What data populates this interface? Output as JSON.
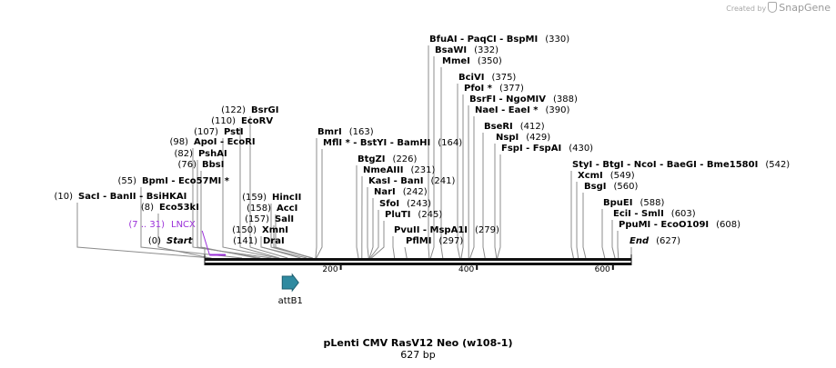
{
  "brand": {
    "prefix": "Created by",
    "name": "SnapGene"
  },
  "plasmid": {
    "name": "pLenti CMV RasV12 Neo (w108-1)",
    "length_label": "627 bp",
    "length": 627
  },
  "ruler": {
    "ticks": [
      {
        "pos": 200,
        "label": "200"
      },
      {
        "pos": 400,
        "label": "400"
      },
      {
        "pos": 600,
        "label": "600"
      }
    ]
  },
  "features": [
    {
      "name": "LNCX",
      "range": "(7 .. 31)",
      "start": 7,
      "end": 31,
      "color": "#9b30d9"
    },
    {
      "name": "attB1",
      "start": 114,
      "end": 138,
      "color": "#2f8aa0"
    }
  ],
  "sites": [
    {
      "text": "Start",
      "pos_label": "(0)",
      "bp": 0,
      "italic": true
    },
    {
      "text": "Eco53kI",
      "pos_label": "(8)",
      "bp": 8
    },
    {
      "text": "SacI  - BanII  - BsiHKAI",
      "pos_label": "(10)",
      "bp": 10
    },
    {
      "text": "BpmI  - Eco57MI *",
      "pos_label": "(55)",
      "bp": 55
    },
    {
      "text": "BbsI",
      "pos_label": "(76)",
      "bp": 76
    },
    {
      "text": "PshAI",
      "pos_label": "(82)",
      "bp": 82
    },
    {
      "text": "ApoI  - EcoRI",
      "pos_label": "(98)",
      "bp": 98
    },
    {
      "text": "PstI",
      "pos_label": "(107)",
      "bp": 107
    },
    {
      "text": "EcoRV",
      "pos_label": "(110)",
      "bp": 110
    },
    {
      "text": "BsrGI",
      "pos_label": "(122)",
      "bp": 122
    },
    {
      "text": "DraI",
      "pos_label": "(141)",
      "bp": 141
    },
    {
      "text": "XmnI",
      "pos_label": "(150)",
      "bp": 150
    },
    {
      "text": "SalI",
      "pos_label": "(157)",
      "bp": 157
    },
    {
      "text": "AccI",
      "pos_label": "(158)",
      "bp": 158
    },
    {
      "text": "HincII",
      "pos_label": "(159)",
      "bp": 159
    },
    {
      "text": "BmrI",
      "pos_label": "(163)",
      "bp": 163
    },
    {
      "text": "MflI * - BstYI  - BamHI",
      "pos_label": "(164)",
      "bp": 164
    },
    {
      "text": "BtgZI",
      "pos_label": "(226)",
      "bp": 226
    },
    {
      "text": "NmeAIII",
      "pos_label": "(231)",
      "bp": 231
    },
    {
      "text": "KasI  - BanI",
      "pos_label": "(241)",
      "bp": 241
    },
    {
      "text": "NarI",
      "pos_label": "(242)",
      "bp": 242
    },
    {
      "text": "SfoI",
      "pos_label": "(243)",
      "bp": 243
    },
    {
      "text": "PluTI",
      "pos_label": "(245)",
      "bp": 245
    },
    {
      "text": "PflMI",
      "pos_label": "(297)",
      "bp": 297
    },
    {
      "text": "PvuII  - MspA1I",
      "pos_label": "(279)",
      "bp": 279
    },
    {
      "text": "BfuAI  - PaqCI  - BspMI",
      "pos_label": "(330)",
      "bp": 330
    },
    {
      "text": "BsaWI",
      "pos_label": "(332)",
      "bp": 332
    },
    {
      "text": "MmeI",
      "pos_label": "(350)",
      "bp": 350
    },
    {
      "text": "BciVI",
      "pos_label": "(375)",
      "bp": 375
    },
    {
      "text": "PfoI *",
      "pos_label": "(377)",
      "bp": 377
    },
    {
      "text": "BsrFI  - NgoMIV",
      "pos_label": "(388)",
      "bp": 388
    },
    {
      "text": "NaeI  - EaeI *",
      "pos_label": "(390)",
      "bp": 390
    },
    {
      "text": "BseRI",
      "pos_label": "(412)",
      "bp": 412
    },
    {
      "text": "NspI",
      "pos_label": "(429)",
      "bp": 429
    },
    {
      "text": "FspI  - FspAI",
      "pos_label": "(430)",
      "bp": 430
    },
    {
      "text": "StyI  - BtgI  - NcoI  - BaeGI  - Bme1580I",
      "pos_label": "(542)",
      "bp": 542
    },
    {
      "text": "XcmI",
      "pos_label": "(549)",
      "bp": 549
    },
    {
      "text": "BsgI",
      "pos_label": "(560)",
      "bp": 560
    },
    {
      "text": "BpuEI",
      "pos_label": "(588)",
      "bp": 588
    },
    {
      "text": "EciI  - SmlI",
      "pos_label": "(603)",
      "bp": 603
    },
    {
      "text": "PpuMI  - EcoO109I",
      "pos_label": "(608)",
      "bp": 608
    },
    {
      "text": "End",
      "pos_label": "(627)",
      "bp": 627,
      "italic": true
    }
  ]
}
